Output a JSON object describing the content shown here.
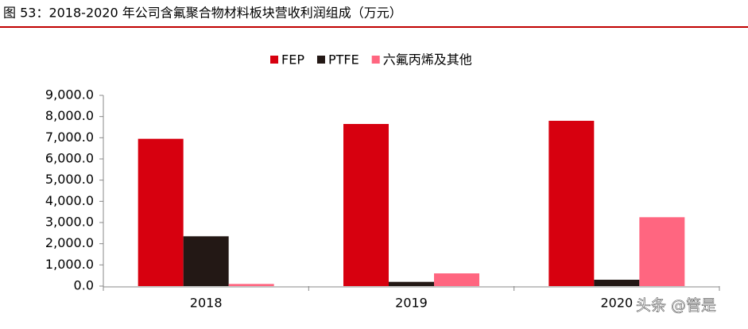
{
  "page_title": "图 53：2018-2020 年公司含氟聚合物材料板块营收利润组成（万元）",
  "chart_data": {
    "type": "bar",
    "categories": [
      "2018",
      "2019",
      "2020"
    ],
    "series": [
      {
        "name": "FEP",
        "color": "#d7000f",
        "values": [
          6950,
          7650,
          7800
        ]
      },
      {
        "name": "PTFE",
        "color": "#231815",
        "values": [
          2350,
          200,
          300
        ]
      },
      {
        "name": "六氟丙烯及其他",
        "color": "#ff6680",
        "values": [
          100,
          600,
          3250
        ]
      }
    ],
    "ylim": [
      0,
      9000
    ],
    "yticks": [
      {
        "value": 0,
        "label": "0.0"
      },
      {
        "value": 1000,
        "label": "1,000.0"
      },
      {
        "value": 2000,
        "label": "2,000.0"
      },
      {
        "value": 3000,
        "label": "3,000.0"
      },
      {
        "value": 4000,
        "label": "4,000.0"
      },
      {
        "value": 5000,
        "label": "5,000.0"
      },
      {
        "value": 6000,
        "label": "6,000.0"
      },
      {
        "value": 7000,
        "label": "7,000.0"
      },
      {
        "value": 8000,
        "label": "8,000.0"
      },
      {
        "value": 9000,
        "label": "9,000.0"
      }
    ],
    "grid": false,
    "legend": "top",
    "watermark": "头条 @管是"
  }
}
